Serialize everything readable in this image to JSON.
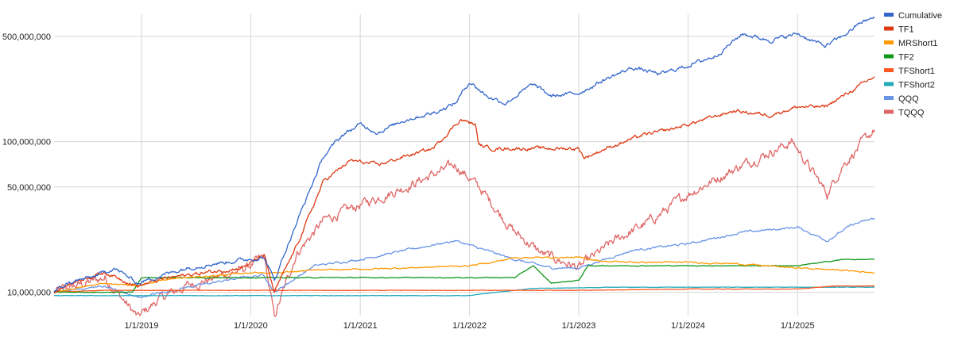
{
  "chart_data": {
    "type": "line",
    "title": "",
    "xlabel": "",
    "ylabel": "",
    "y_scale": "log",
    "ylim": [
      7000000,
      700000000
    ],
    "xlim": [
      "2018-03-15",
      "2025-09-15"
    ],
    "grid": true,
    "legend_position": "right",
    "y_ticks": [
      10000000,
      50000000,
      100000000,
      500000000
    ],
    "y_tick_labels": [
      "10,000,000",
      "50,000,000",
      "100,000,000",
      "500,000,000"
    ],
    "x_ticks": [
      "2019-01-01",
      "2020-01-01",
      "2021-01-01",
      "2022-01-01",
      "2023-01-01",
      "2024-01-01",
      "2025-01-01"
    ],
    "x_tick_labels": [
      "1/1/2019",
      "1/1/2020",
      "1/1/2021",
      "1/1/2022",
      "1/1/2023",
      "1/1/2024",
      "1/1/2025"
    ],
    "series": [
      {
        "name": "Cumulative",
        "color": "#3366cc",
        "noise": 0.022,
        "points": [
          [
            "2018-03-15",
            10000000
          ],
          [
            "2018-05-01",
            11500000
          ],
          [
            "2018-08-01",
            12800000
          ],
          [
            "2018-10-01",
            14500000
          ],
          [
            "2018-12-20",
            11500000
          ],
          [
            "2019-03-01",
            12800000
          ],
          [
            "2019-06-01",
            14500000
          ],
          [
            "2019-09-01",
            15500000
          ],
          [
            "2019-12-15",
            16500000
          ],
          [
            "2020-02-15",
            17000000
          ],
          [
            "2020-03-20",
            12000000
          ],
          [
            "2020-05-01",
            20000000
          ],
          [
            "2020-07-01",
            40000000
          ],
          [
            "2020-09-01",
            80000000
          ],
          [
            "2020-11-01",
            110000000
          ],
          [
            "2021-01-01",
            130000000
          ],
          [
            "2021-03-01",
            115000000
          ],
          [
            "2021-06-01",
            140000000
          ],
          [
            "2021-09-01",
            155000000
          ],
          [
            "2021-11-15",
            180000000
          ],
          [
            "2022-01-01",
            250000000
          ],
          [
            "2022-03-01",
            200000000
          ],
          [
            "2022-05-01",
            180000000
          ],
          [
            "2022-08-01",
            240000000
          ],
          [
            "2022-10-01",
            200000000
          ],
          [
            "2023-01-01",
            210000000
          ],
          [
            "2023-04-01",
            260000000
          ],
          [
            "2023-07-01",
            310000000
          ],
          [
            "2023-10-01",
            280000000
          ],
          [
            "2024-01-01",
            320000000
          ],
          [
            "2024-04-01",
            370000000
          ],
          [
            "2024-07-01",
            520000000
          ],
          [
            "2024-10-01",
            470000000
          ],
          [
            "2025-01-01",
            520000000
          ],
          [
            "2025-04-01",
            430000000
          ],
          [
            "2025-06-01",
            500000000
          ],
          [
            "2025-08-01",
            620000000
          ],
          [
            "2025-09-15",
            660000000
          ]
        ]
      },
      {
        "name": "TF1",
        "color": "#dc3912",
        "noise": 0.02,
        "points": [
          [
            "2018-03-15",
            10000000
          ],
          [
            "2018-06-01",
            12000000
          ],
          [
            "2018-09-01",
            13500000
          ],
          [
            "2018-12-20",
            11000000
          ],
          [
            "2019-04-01",
            12500000
          ],
          [
            "2019-08-01",
            13500000
          ],
          [
            "2019-12-01",
            14500000
          ],
          [
            "2020-02-15",
            17500000
          ],
          [
            "2020-03-20",
            10000000
          ],
          [
            "2020-06-01",
            20000000
          ],
          [
            "2020-09-01",
            55000000
          ],
          [
            "2020-12-01",
            75000000
          ],
          [
            "2021-03-01",
            70000000
          ],
          [
            "2021-06-01",
            80000000
          ],
          [
            "2021-09-01",
            90000000
          ],
          [
            "2021-12-01",
            140000000
          ],
          [
            "2022-01-20",
            130000000
          ],
          [
            "2022-02-01",
            95000000
          ],
          [
            "2022-03-15",
            90000000
          ],
          [
            "2022-06-01",
            90000000
          ],
          [
            "2022-10-01",
            90000000
          ],
          [
            "2023-01-01",
            90000000
          ],
          [
            "2023-01-20",
            78000000
          ],
          [
            "2023-04-01",
            90000000
          ],
          [
            "2023-08-01",
            110000000
          ],
          [
            "2023-11-01",
            120000000
          ],
          [
            "2024-01-01",
            130000000
          ],
          [
            "2024-06-01",
            160000000
          ],
          [
            "2024-10-01",
            150000000
          ],
          [
            "2025-01-01",
            170000000
          ],
          [
            "2025-04-01",
            170000000
          ],
          [
            "2025-06-01",
            200000000
          ],
          [
            "2025-09-15",
            270000000
          ]
        ]
      },
      {
        "name": "MRShort1",
        "color": "#ff9900",
        "noise": 0.008,
        "points": [
          [
            "2018-03-15",
            10000000
          ],
          [
            "2018-09-01",
            11500000
          ],
          [
            "2018-12-20",
            11000000
          ],
          [
            "2019-03-01",
            12000000
          ],
          [
            "2019-06-01",
            12500000
          ],
          [
            "2019-10-01",
            13000000
          ],
          [
            "2020-01-01",
            13500000
          ],
          [
            "2020-04-01",
            13500000
          ],
          [
            "2020-08-01",
            14000000
          ],
          [
            "2021-01-01",
            14200000
          ],
          [
            "2021-06-01",
            14500000
          ],
          [
            "2022-01-01",
            15000000
          ],
          [
            "2022-04-01",
            16000000
          ],
          [
            "2022-06-01",
            17000000
          ],
          [
            "2023-01-01",
            17000000
          ],
          [
            "2023-04-01",
            16000000
          ],
          [
            "2023-08-01",
            15800000
          ],
          [
            "2024-01-01",
            15800000
          ],
          [
            "2024-06-01",
            15500000
          ],
          [
            "2025-01-01",
            14500000
          ],
          [
            "2025-06-01",
            14000000
          ],
          [
            "2025-09-15",
            13500000
          ]
        ]
      },
      {
        "name": "TF2",
        "color": "#109618",
        "noise": 0.004,
        "points": [
          [
            "2018-03-15",
            10000000
          ],
          [
            "2018-12-01",
            10000000
          ],
          [
            "2019-01-01",
            12500000
          ],
          [
            "2019-12-01",
            12500000
          ],
          [
            "2020-04-01",
            12500000
          ],
          [
            "2021-01-01",
            12500000
          ],
          [
            "2022-01-01",
            12500000
          ],
          [
            "2022-06-01",
            12500000
          ],
          [
            "2022-08-01",
            15000000
          ],
          [
            "2022-10-01",
            11500000
          ],
          [
            "2023-01-01",
            12000000
          ],
          [
            "2023-02-01",
            15000000
          ],
          [
            "2023-06-01",
            15000000
          ],
          [
            "2024-01-01",
            15000000
          ],
          [
            "2025-01-01",
            15000000
          ],
          [
            "2025-06-01",
            16500000
          ],
          [
            "2025-09-15",
            16500000
          ]
        ]
      },
      {
        "name": "TFShort1",
        "color": "#ff5722",
        "noise": 0.002,
        "points": [
          [
            "2018-03-15",
            10000000
          ],
          [
            "2018-09-01",
            10300000
          ],
          [
            "2019-03-01",
            10300000
          ],
          [
            "2020-01-01",
            10300000
          ],
          [
            "2021-01-01",
            10300000
          ],
          [
            "2022-01-01",
            10300000
          ],
          [
            "2023-01-01",
            10300000
          ],
          [
            "2024-01-01",
            10500000
          ],
          [
            "2025-01-01",
            10500000
          ],
          [
            "2025-05-01",
            11000000
          ],
          [
            "2025-09-15",
            11000000
          ]
        ]
      },
      {
        "name": "TFShort2",
        "color": "#22aabb",
        "noise": 0.002,
        "points": [
          [
            "2018-03-15",
            9500000
          ],
          [
            "2019-01-01",
            9500000
          ],
          [
            "2020-01-01",
            9500000
          ],
          [
            "2021-01-01",
            9500000
          ],
          [
            "2022-01-01",
            9500000
          ],
          [
            "2022-04-01",
            10000000
          ],
          [
            "2022-08-01",
            10600000
          ],
          [
            "2023-01-01",
            10700000
          ],
          [
            "2023-06-01",
            10800000
          ],
          [
            "2024-01-01",
            10800000
          ],
          [
            "2025-01-01",
            10800000
          ],
          [
            "2025-09-15",
            10800000
          ]
        ]
      },
      {
        "name": "QQQ",
        "color": "#6a95e6",
        "noise": 0.012,
        "points": [
          [
            "2018-03-15",
            10000000
          ],
          [
            "2018-09-01",
            11000000
          ],
          [
            "2018-12-20",
            9200000
          ],
          [
            "2019-06-01",
            10800000
          ],
          [
            "2019-12-01",
            12500000
          ],
          [
            "2020-02-15",
            13000000
          ],
          [
            "2020-03-20",
            10000000
          ],
          [
            "2020-08-01",
            15000000
          ],
          [
            "2021-01-01",
            16500000
          ],
          [
            "2021-06-01",
            19000000
          ],
          [
            "2021-11-15",
            22000000
          ],
          [
            "2022-06-01",
            16500000
          ],
          [
            "2022-10-01",
            14500000
          ],
          [
            "2023-01-01",
            14500000
          ],
          [
            "2023-07-01",
            19000000
          ],
          [
            "2024-01-01",
            21000000
          ],
          [
            "2024-07-01",
            25000000
          ],
          [
            "2025-01-01",
            27000000
          ],
          [
            "2025-04-10",
            22000000
          ],
          [
            "2025-07-01",
            28000000
          ],
          [
            "2025-09-15",
            31000000
          ]
        ]
      },
      {
        "name": "TQQQ",
        "color": "#e06666",
        "noise": 0.055,
        "points": [
          [
            "2018-03-15",
            10000000
          ],
          [
            "2018-09-01",
            12500000
          ],
          [
            "2018-12-20",
            6800000
          ],
          [
            "2019-03-01",
            9000000
          ],
          [
            "2019-06-01",
            11000000
          ],
          [
            "2019-12-01",
            14000000
          ],
          [
            "2020-02-15",
            17000000
          ],
          [
            "2020-03-20",
            6800000
          ],
          [
            "2020-06-01",
            18000000
          ],
          [
            "2020-09-01",
            30000000
          ],
          [
            "2021-01-01",
            38000000
          ],
          [
            "2021-06-01",
            50000000
          ],
          [
            "2021-11-15",
            70000000
          ],
          [
            "2022-02-01",
            50000000
          ],
          [
            "2022-06-01",
            25000000
          ],
          [
            "2022-09-01",
            18000000
          ],
          [
            "2023-01-01",
            14500000
          ],
          [
            "2023-05-01",
            22000000
          ],
          [
            "2023-09-01",
            30000000
          ],
          [
            "2024-01-01",
            45000000
          ],
          [
            "2024-07-01",
            70000000
          ],
          [
            "2024-12-15",
            100000000
          ],
          [
            "2025-04-10",
            45000000
          ],
          [
            "2025-06-01",
            70000000
          ],
          [
            "2025-09-15",
            120000000
          ]
        ]
      }
    ]
  }
}
